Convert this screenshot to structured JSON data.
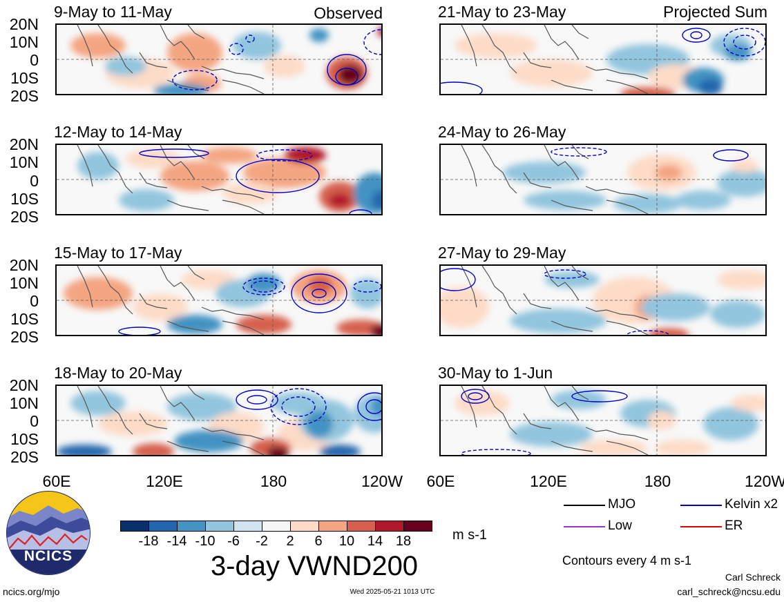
{
  "panels_left": [
    {
      "label": "9-May to 11-May"
    },
    {
      "label": "12-May to 14-May"
    },
    {
      "label": "15-May to 17-May"
    },
    {
      "label": "18-May to 20-May"
    }
  ],
  "panels_right": [
    {
      "label": "21-May to 23-May"
    },
    {
      "label": "24-May to 26-May"
    },
    {
      "label": "27-May to 29-May"
    },
    {
      "label": "30-May to 1-Jun"
    }
  ],
  "corner_left": "Observed",
  "corner_right": "Projected Sum",
  "lat_labels": [
    "20N",
    "10N",
    "0",
    "10S",
    "20S"
  ],
  "lon_labels": [
    "60E",
    "120E",
    "180",
    "120W"
  ],
  "colorbar": {
    "colors": [
      "#08306b",
      "#2166ac",
      "#4393c3",
      "#92c5de",
      "#d1e5f0",
      "#f7f7f7",
      "#fddbc7",
      "#f4a582",
      "#d6604d",
      "#b2182b",
      "#67001f"
    ],
    "labels": [
      "-18",
      "-14",
      "-10",
      "-6",
      "-2",
      "2",
      "6",
      "10",
      "14",
      "18"
    ],
    "units": "m s-1"
  },
  "legend": [
    {
      "label": "MJO",
      "color": "#000000"
    },
    {
      "label": "Kelvin x2",
      "color": "#0000cc"
    },
    {
      "label": "Low",
      "color": "#9933cc"
    },
    {
      "label": "ER",
      "color": "#dd0000"
    }
  ],
  "contours_note": "Contours every 4 m s-1",
  "title": "3-day VWND200",
  "logo_text": "NCICS",
  "footer": {
    "url": "ncics.org/mjo",
    "timestamp": "Wed 2025-05-21 1013 UTC",
    "author": "Carl Schreck",
    "email": "carl_schreck@ncsu.edu"
  }
}
